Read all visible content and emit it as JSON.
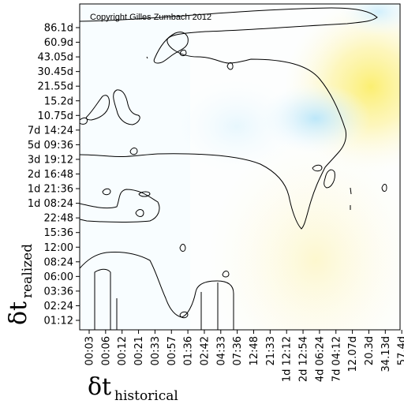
{
  "chart_data": {
    "type": "heatmap",
    "title": "",
    "annotation": "Copyright Gilles Zumbach 2012",
    "xlabel": {
      "main": "δt",
      "sub": "historical"
    },
    "ylabel": {
      "main": "δt",
      "sub": "realized"
    },
    "x_ticks": [
      "00:03",
      "00:06",
      "00:12",
      "00:21",
      "00:33",
      "00:57",
      "01:36",
      "02:42",
      "04:33",
      "07:36",
      "12:48",
      "21:33",
      "1d 12:12",
      "2d 12:54",
      "4d 06:24",
      "7d 04:12",
      "12.07d",
      "20.3d",
      "34.13d",
      "57.4d"
    ],
    "y_ticks": [
      "01:12",
      "02:24",
      "03:36",
      "06:00",
      "08:24",
      "12:00",
      "15:36",
      "22:48",
      "1d 08:24",
      "1d 21:36",
      "2d 16:48",
      "3d 19:12",
      "5d 09:36",
      "7d 14:24",
      "10.75d",
      "15.2d",
      "21.55d",
      "30.45d",
      "43.05d",
      "60.9d",
      "86.1d"
    ],
    "colors": {
      "low": "#c9ecfb",
      "mid": "#ffffff",
      "high": "#fdf27a"
    },
    "grid": false,
    "legend": "none"
  }
}
